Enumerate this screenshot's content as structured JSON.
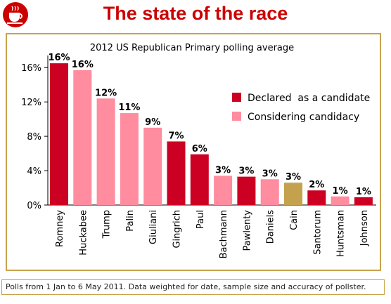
{
  "header": {
    "title": "The state of the race"
  },
  "logo": {
    "icon": "coffee-cup-logo-icon",
    "color": "#cc0000"
  },
  "footnote": "Polls from 1 Jan to 6 May 2011. Data weighted for date, sample size and accuracy of pollster.",
  "colors": {
    "declared": "#cc0022",
    "considering": "#ff8c9f",
    "other": "#c4a24d",
    "frame": "#c9a24b"
  },
  "chart_data": {
    "type": "bar",
    "title": "2012 US Republican Primary polling average",
    "xlabel": "",
    "ylabel": "",
    "ylim": [
      0,
      17
    ],
    "yticks": [
      0,
      4,
      8,
      12,
      16
    ],
    "ytick_labels": [
      "0%",
      "4%",
      "8%",
      "12%",
      "16%"
    ],
    "grid": false,
    "legend_position": "right",
    "legend": [
      {
        "label": "Declared  as a candidate",
        "status": "declared"
      },
      {
        "label": "Considering candidacy",
        "status": "considering"
      }
    ],
    "categories": [
      "Romney",
      "Huckabee",
      "Trump",
      "Palin",
      "Giuliani",
      "Gingrich",
      "Paul",
      "Bachmann",
      "Pawlenty",
      "Daniels",
      "Cain",
      "Santorum",
      "Huntsman",
      "Johnson"
    ],
    "values": [
      16.5,
      15.7,
      12.4,
      10.7,
      9.0,
      7.4,
      5.9,
      3.4,
      3.3,
      3.0,
      2.6,
      1.7,
      1.0,
      0.9
    ],
    "data_labels": [
      "16%",
      "16%",
      "12%",
      "11%",
      "9%",
      "7%",
      "6%",
      "3%",
      "3%",
      "3%",
      "3%",
      "2%",
      "1%",
      "1%"
    ],
    "status": [
      "declared",
      "considering",
      "considering",
      "considering",
      "considering",
      "declared",
      "declared",
      "considering",
      "declared",
      "considering",
      "other",
      "declared",
      "considering",
      "declared"
    ]
  }
}
